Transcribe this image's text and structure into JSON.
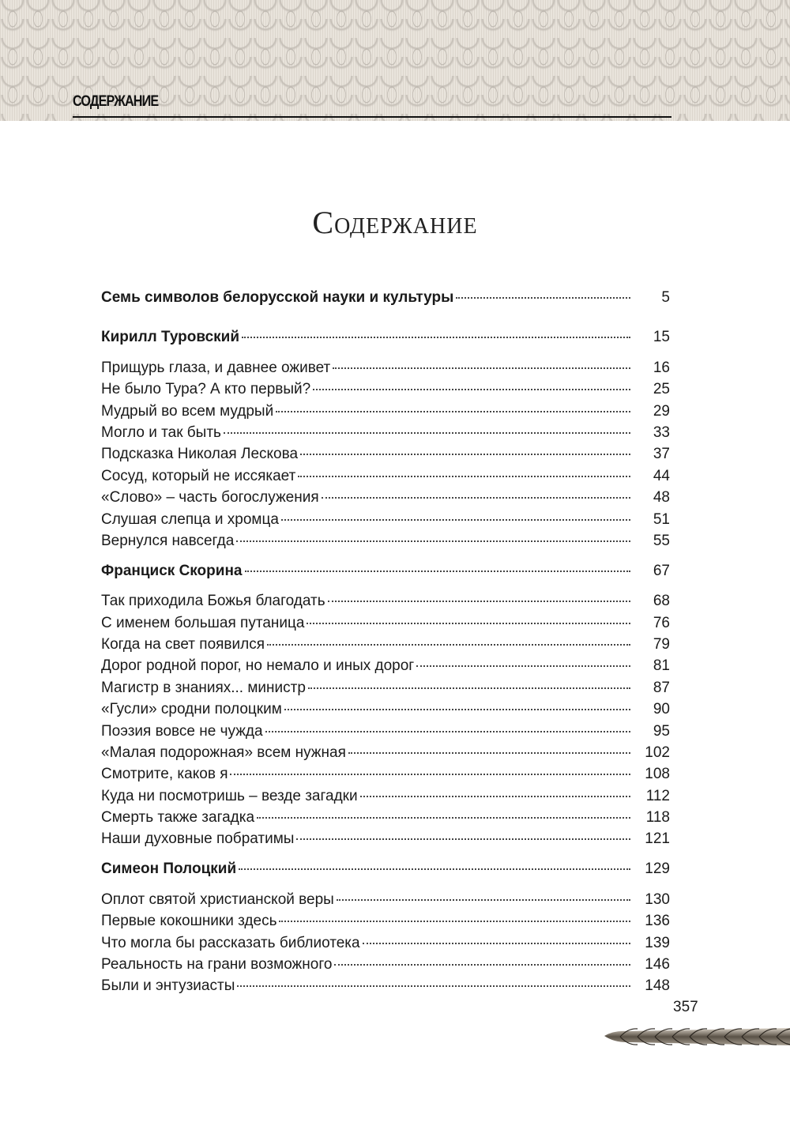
{
  "header": {
    "running_title": "СОДЕРЖАНИЕ"
  },
  "title": "Содержание",
  "toc": [
    {
      "label": "Семь символов белорусской науки и культуры",
      "page": "5",
      "bold": true
    },
    {
      "label": "Кирилл Туровский",
      "page": "15",
      "bold": true
    },
    {
      "label": "Прищурь глаза, и давнее оживет",
      "page": "16"
    },
    {
      "label": "Не было Тура? А кто первый?",
      "page": "25"
    },
    {
      "label": "Мудрый во всем мудрый",
      "page": "29"
    },
    {
      "label": "Могло и так быть",
      "page": "33"
    },
    {
      "label": "Подсказка Николая Лескова",
      "page": "37"
    },
    {
      "label": "Сосуд, который не иссякает",
      "page": "44"
    },
    {
      "label": "«Слово» – часть богослужения",
      "page": "48"
    },
    {
      "label": "Слушая слепца и хромца",
      "page": "51"
    },
    {
      "label": "Вернулся навсегда",
      "page": "55"
    },
    {
      "label": "Франциск Скорина",
      "page": "67",
      "bold": true
    },
    {
      "label": "Так приходила Божья благодать",
      "page": "68"
    },
    {
      "label": "С именем большая путаница",
      "page": "76"
    },
    {
      "label": "Когда на свет появился",
      "page": "79"
    },
    {
      "label": "Дорог родной порог, но немало и иных дорог",
      "page": "81"
    },
    {
      "label": "Магистр в знаниях... министр",
      "page": "87"
    },
    {
      "label": "«Гусли» сродни полоцким",
      "page": "90"
    },
    {
      "label": "Поэзия вовсе не чужда",
      "page": "95"
    },
    {
      "label": "«Малая подорожная» всем нужная",
      "page": "102"
    },
    {
      "label": "Смотрите, каков я",
      "page": "108"
    },
    {
      "label": "Куда ни посмотришь – везде загадки",
      "page": "112"
    },
    {
      "label": "Смерть также загадка",
      "page": "118"
    },
    {
      "label": "Наши духовные побратимы",
      "page": "121"
    },
    {
      "label": "Симеон Полоцкий",
      "page": "129",
      "bold": true
    },
    {
      "label": "Оплот святой христианской веры",
      "page": "130"
    },
    {
      "label": "Первые кокошники здесь",
      "page": "136"
    },
    {
      "label": "Что могла бы рассказать библиотека",
      "page": "139"
    },
    {
      "label": "Реальность на грани возможного",
      "page": "146"
    },
    {
      "label": "Были и энтузиасты",
      "page": "148"
    }
  ],
  "footer": {
    "page_number": "357",
    "ornament": "wheat-ear-ornament"
  }
}
